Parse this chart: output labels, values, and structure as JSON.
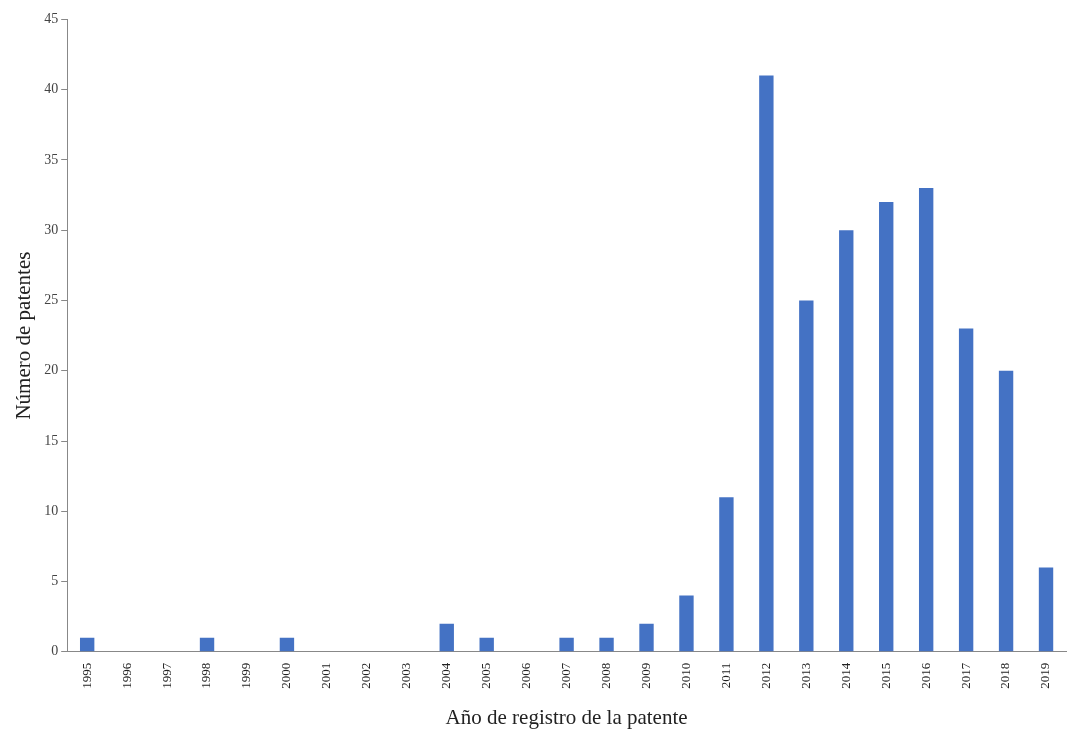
{
  "chart_data": {
    "type": "bar",
    "xlabel": "Año de registro de la patente",
    "ylabel": "Número de patentes",
    "categories": [
      "1995",
      "1996",
      "1997",
      "1998",
      "1999",
      "2000",
      "2001",
      "2002",
      "2003",
      "2004",
      "2005",
      "2006",
      "2007",
      "2008",
      "2009",
      "2010",
      "2011",
      "2012",
      "2013",
      "2014",
      "2015",
      "2016",
      "2017",
      "2018",
      "2019"
    ],
    "values": [
      1,
      0,
      0,
      1,
      0,
      1,
      0,
      0,
      0,
      2,
      1,
      0,
      1,
      1,
      2,
      4,
      11,
      41,
      25,
      30,
      32,
      33,
      23,
      20,
      6
    ],
    "color": "#4472c4",
    "ylim": [
      0,
      45
    ],
    "yticks": [
      0,
      5,
      10,
      15,
      20,
      25,
      30,
      35,
      40,
      45
    ],
    "grid": false,
    "legend": false
  }
}
